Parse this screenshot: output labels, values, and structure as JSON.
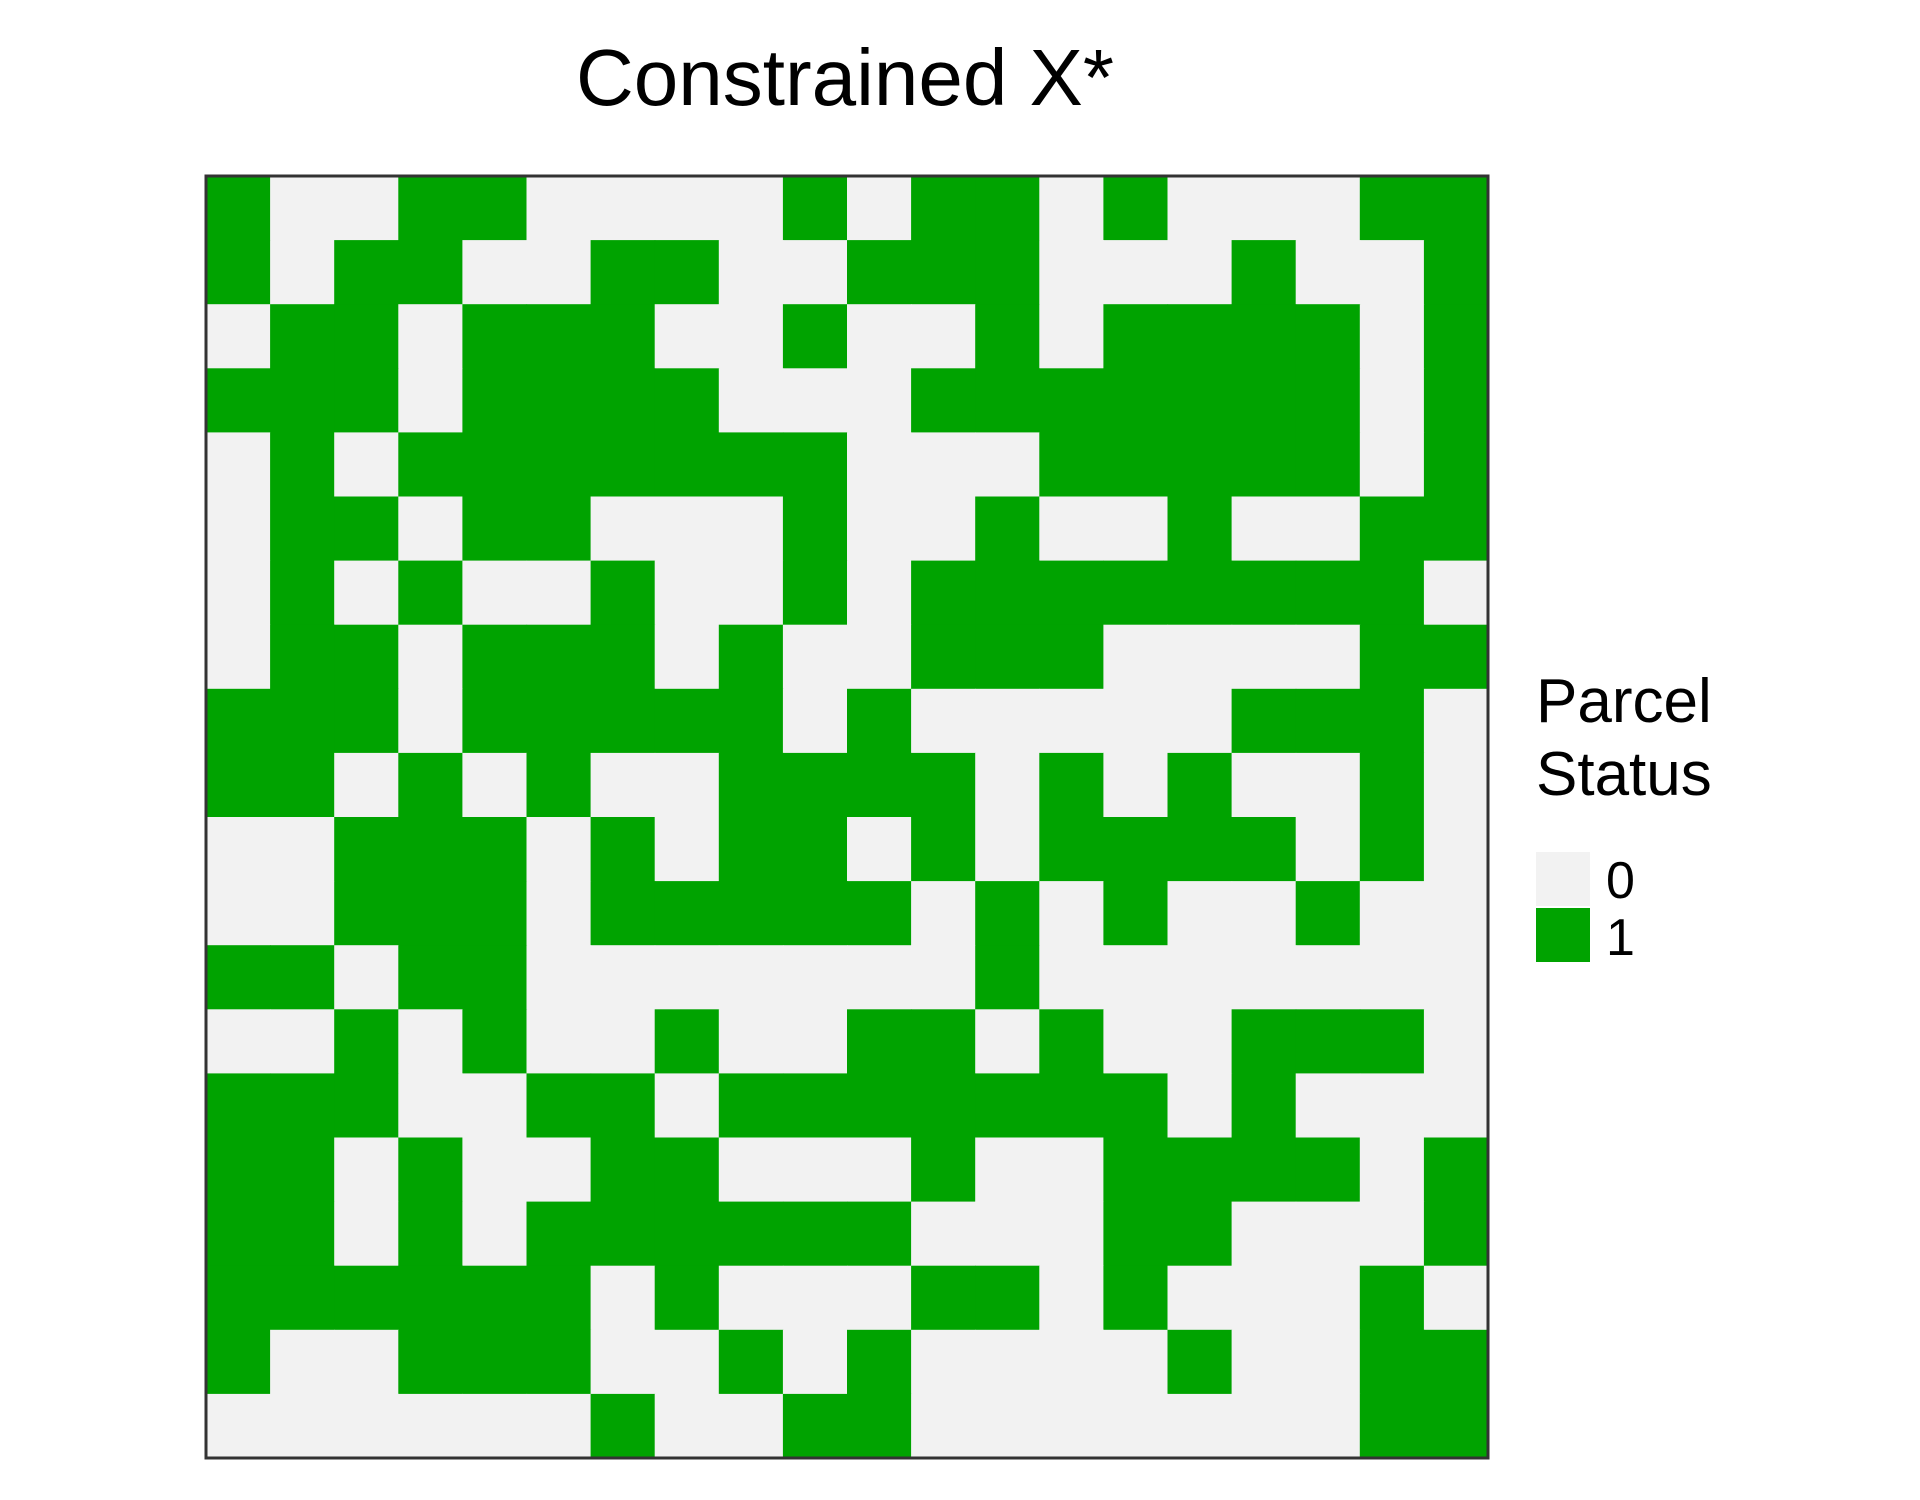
{
  "chart_data": {
    "type": "heatmap",
    "title": "Constrained X*",
    "xlabel": "",
    "ylabel": "",
    "grid": false,
    "legend": {
      "title": [
        "Parcel",
        "Status"
      ],
      "position": "right",
      "entries": [
        {
          "label": "0",
          "value": 0,
          "color": "#f2f2f2"
        },
        {
          "label": "1",
          "value": 1,
          "color": "#00a300"
        }
      ]
    },
    "colors": {
      "0": "#f2f2f2",
      "1": "#00a300",
      "border": "#333333"
    },
    "rows": 20,
    "cols": 20,
    "matrix": [
      [
        1,
        0,
        0,
        1,
        1,
        0,
        0,
        0,
        0,
        1,
        0,
        1,
        1,
        0,
        1,
        0,
        0,
        0,
        1,
        1
      ],
      [
        1,
        0,
        1,
        1,
        0,
        0,
        1,
        1,
        0,
        0,
        1,
        1,
        1,
        0,
        0,
        0,
        1,
        0,
        0,
        1
      ],
      [
        0,
        1,
        1,
        0,
        1,
        1,
        1,
        0,
        0,
        1,
        0,
        0,
        1,
        0,
        1,
        1,
        1,
        1,
        0,
        1
      ],
      [
        1,
        1,
        1,
        0,
        1,
        1,
        1,
        1,
        0,
        0,
        0,
        1,
        1,
        1,
        1,
        1,
        1,
        1,
        0,
        1
      ],
      [
        0,
        1,
        0,
        1,
        1,
        1,
        1,
        1,
        1,
        1,
        0,
        0,
        0,
        1,
        1,
        1,
        1,
        1,
        0,
        1
      ],
      [
        0,
        1,
        1,
        0,
        1,
        1,
        0,
        0,
        0,
        1,
        0,
        0,
        1,
        0,
        0,
        1,
        0,
        0,
        1,
        1
      ],
      [
        0,
        1,
        0,
        1,
        0,
        0,
        1,
        0,
        0,
        1,
        0,
        1,
        1,
        1,
        1,
        1,
        1,
        1,
        1,
        0
      ],
      [
        0,
        1,
        1,
        0,
        1,
        1,
        1,
        0,
        1,
        0,
        0,
        1,
        1,
        1,
        0,
        0,
        0,
        0,
        1,
        1
      ],
      [
        1,
        1,
        1,
        0,
        1,
        1,
        1,
        1,
        1,
        0,
        1,
        0,
        0,
        0,
        0,
        0,
        1,
        1,
        1,
        0
      ],
      [
        1,
        1,
        0,
        1,
        0,
        1,
        0,
        0,
        1,
        1,
        1,
        1,
        0,
        1,
        0,
        1,
        0,
        0,
        1,
        0
      ],
      [
        0,
        0,
        1,
        1,
        1,
        0,
        1,
        0,
        1,
        1,
        0,
        1,
        0,
        1,
        1,
        1,
        1,
        0,
        1,
        0
      ],
      [
        0,
        0,
        1,
        1,
        1,
        0,
        1,
        1,
        1,
        1,
        1,
        0,
        1,
        0,
        1,
        0,
        0,
        1,
        0,
        0
      ],
      [
        1,
        1,
        0,
        1,
        1,
        0,
        0,
        0,
        0,
        0,
        0,
        0,
        1,
        0,
        0,
        0,
        0,
        0,
        0,
        0
      ],
      [
        0,
        0,
        1,
        0,
        1,
        0,
        0,
        1,
        0,
        0,
        1,
        1,
        0,
        1,
        0,
        0,
        1,
        1,
        1,
        0
      ],
      [
        1,
        1,
        1,
        0,
        0,
        1,
        1,
        0,
        1,
        1,
        1,
        1,
        1,
        1,
        1,
        0,
        1,
        0,
        0,
        0
      ],
      [
        1,
        1,
        0,
        1,
        0,
        0,
        1,
        1,
        0,
        0,
        0,
        1,
        0,
        0,
        1,
        1,
        1,
        1,
        0,
        1
      ],
      [
        1,
        1,
        0,
        1,
        0,
        1,
        1,
        1,
        1,
        1,
        1,
        0,
        0,
        0,
        1,
        1,
        0,
        0,
        0,
        1
      ],
      [
        1,
        1,
        1,
        1,
        1,
        1,
        0,
        1,
        0,
        0,
        0,
        1,
        1,
        0,
        1,
        0,
        0,
        0,
        1,
        0
      ],
      [
        1,
        0,
        0,
        1,
        1,
        1,
        0,
        0,
        1,
        0,
        1,
        0,
        0,
        0,
        0,
        1,
        0,
        0,
        1,
        1
      ],
      [
        0,
        0,
        0,
        0,
        0,
        0,
        1,
        0,
        0,
        1,
        1,
        0,
        0,
        0,
        0,
        0,
        0,
        0,
        1,
        1
      ]
    ]
  }
}
